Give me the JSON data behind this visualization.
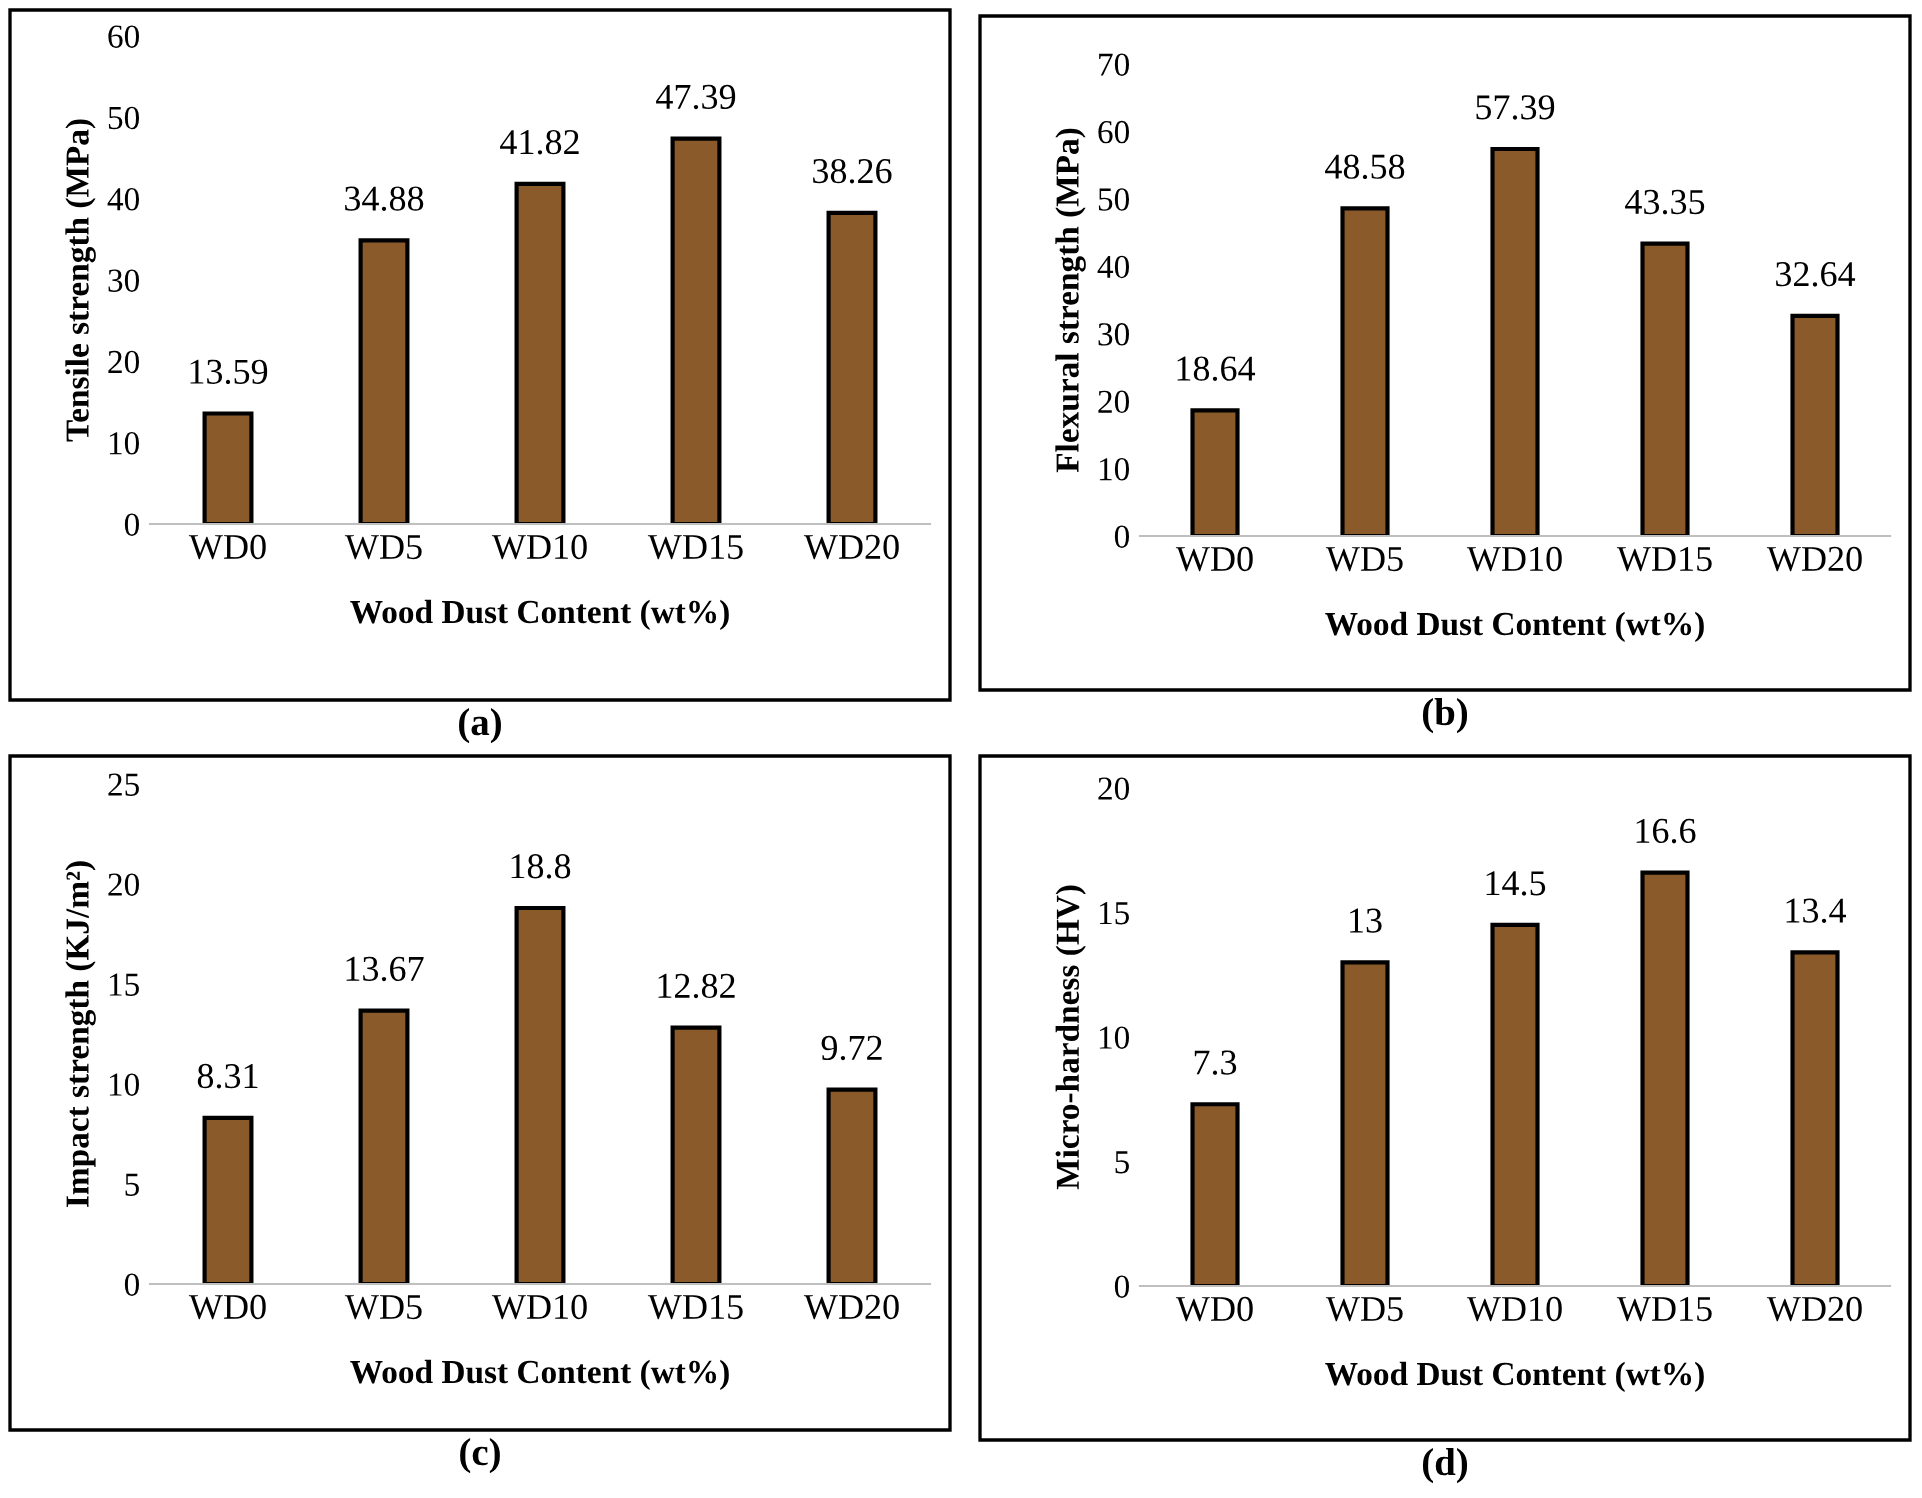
{
  "chart_data": [
    {
      "type": "bar",
      "xlabel": "Wood Dust Content (wt%)",
      "ylabel": "Tensile strength (MPa)",
      "categories": [
        "WD0",
        "WD5",
        "WD10",
        "WD15",
        "WD20"
      ],
      "values": [
        13.59,
        34.88,
        41.82,
        47.39,
        38.26
      ],
      "color": "#8b5a2b",
      "ylim": [
        0,
        60
      ],
      "yticks": [
        0,
        10,
        20,
        30,
        40,
        50,
        60
      ],
      "data_labels": true,
      "grid": false,
      "annotations": [
        "(a)"
      ]
    },
    {
      "type": "bar",
      "xlabel": "Wood Dust Content (wt%)",
      "ylabel": "Flexural strength (MPa)",
      "categories": [
        "WD0",
        "WD5",
        "WD10",
        "WD15",
        "WD20"
      ],
      "values": [
        18.64,
        48.58,
        57.39,
        43.35,
        32.64
      ],
      "color": "#8b5a2b",
      "ylim": [
        0,
        70
      ],
      "yticks": [
        0,
        10,
        20,
        30,
        40,
        50,
        60,
        70
      ],
      "data_labels": true,
      "grid": false,
      "annotations": [
        "(b)"
      ]
    },
    {
      "type": "bar",
      "xlabel": "Wood Dust Content (wt%)",
      "ylabel": "Impact strength (KJ/m²)",
      "categories": [
        "WD0",
        "WD5",
        "WD10",
        "WD15",
        "WD20"
      ],
      "values": [
        8.31,
        13.67,
        18.8,
        12.82,
        9.72
      ],
      "color": "#8b5a2b",
      "ylim": [
        0,
        25
      ],
      "yticks": [
        0,
        5,
        10,
        15,
        20,
        25
      ],
      "data_labels": true,
      "grid": false,
      "annotations": [
        "(c)"
      ]
    },
    {
      "type": "bar",
      "xlabel": "Wood Dust Content (wt%)",
      "ylabel": "Micro-hardness (HV)",
      "categories": [
        "WD0",
        "WD5",
        "WD10",
        "WD15",
        "WD20"
      ],
      "values": [
        7.3,
        13,
        14.5,
        16.6,
        13.4
      ],
      "color": "#8b5a2b",
      "ylim": [
        0,
        20
      ],
      "yticks": [
        0,
        5,
        10,
        15,
        20
      ],
      "data_labels": true,
      "grid": false,
      "annotations": [
        "(d)"
      ]
    }
  ]
}
